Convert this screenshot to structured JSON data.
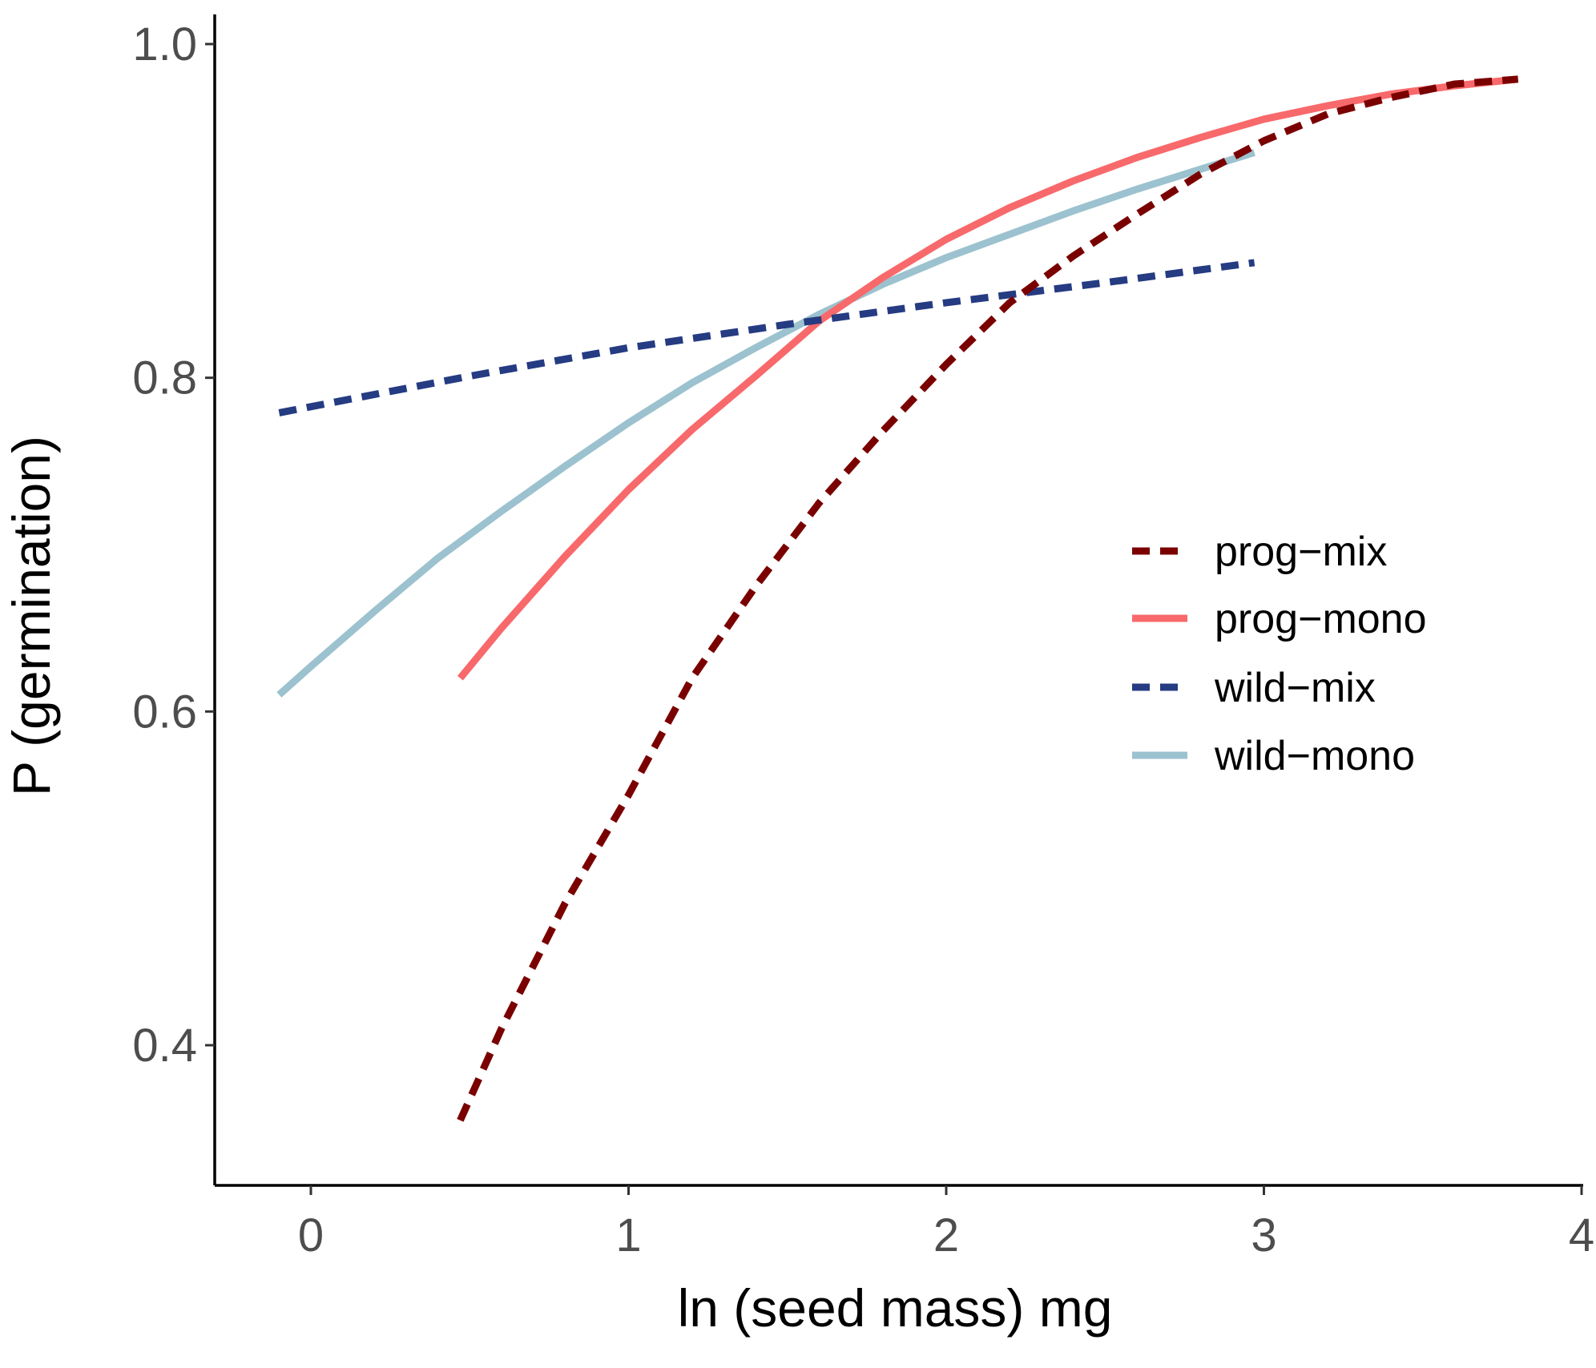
{
  "chart_data": {
    "type": "line",
    "title": "",
    "xlabel": "ln (seed mass) mg",
    "ylabel": "P (germination)",
    "xlim": [
      -0.3,
      4.0
    ],
    "ylim": [
      0.32,
      1.02
    ],
    "xticks": [
      0,
      1,
      2,
      3,
      4
    ],
    "yticks": [
      0.4,
      0.6,
      0.8,
      1.0
    ],
    "ytick_labels": [
      "0.4",
      "0.6",
      "0.8",
      "1.0"
    ],
    "grid": false,
    "legend_position": "right",
    "series": [
      {
        "name": "prog−mix",
        "color": "#7a0000",
        "dash": "dashed",
        "points": [
          [
            0.47,
            0.355
          ],
          [
            0.6,
            0.41
          ],
          [
            0.8,
            0.485
          ],
          [
            1.0,
            0.55
          ],
          [
            1.2,
            0.62
          ],
          [
            1.4,
            0.675
          ],
          [
            1.6,
            0.725
          ],
          [
            1.8,
            0.768
          ],
          [
            2.0,
            0.808
          ],
          [
            2.2,
            0.845
          ],
          [
            2.4,
            0.873
          ],
          [
            2.6,
            0.898
          ],
          [
            2.8,
            0.922
          ],
          [
            3.0,
            0.942
          ],
          [
            3.2,
            0.958
          ],
          [
            3.4,
            0.968
          ],
          [
            3.6,
            0.976
          ],
          [
            3.8,
            0.979
          ]
        ]
      },
      {
        "name": "prog−mono",
        "color": "#f8696b",
        "dash": "solid",
        "points": [
          [
            0.47,
            0.62
          ],
          [
            0.6,
            0.65
          ],
          [
            0.8,
            0.693
          ],
          [
            1.0,
            0.733
          ],
          [
            1.2,
            0.769
          ],
          [
            1.4,
            0.801
          ],
          [
            1.6,
            0.834
          ],
          [
            1.8,
            0.86
          ],
          [
            2.0,
            0.883
          ],
          [
            2.2,
            0.902
          ],
          [
            2.4,
            0.918
          ],
          [
            2.6,
            0.932
          ],
          [
            2.8,
            0.944
          ],
          [
            3.0,
            0.955
          ],
          [
            3.2,
            0.963
          ],
          [
            3.4,
            0.97
          ],
          [
            3.6,
            0.975
          ],
          [
            3.8,
            0.979
          ]
        ]
      },
      {
        "name": "wild−mix",
        "color": "#253b82",
        "dash": "dashed",
        "points": [
          [
            -0.1,
            0.779
          ],
          [
            0.5,
            0.801
          ],
          [
            1.0,
            0.818
          ],
          [
            1.5,
            0.832
          ],
          [
            2.0,
            0.845
          ],
          [
            2.5,
            0.857
          ],
          [
            2.97,
            0.869
          ]
        ]
      },
      {
        "name": "wild−mono",
        "color": "#9cc2cf",
        "dash": "solid",
        "points": [
          [
            -0.1,
            0.61
          ],
          [
            0.0,
            0.627
          ],
          [
            0.2,
            0.66
          ],
          [
            0.4,
            0.692
          ],
          [
            0.6,
            0.72
          ],
          [
            0.8,
            0.747
          ],
          [
            1.0,
            0.773
          ],
          [
            1.2,
            0.797
          ],
          [
            1.4,
            0.818
          ],
          [
            1.6,
            0.838
          ],
          [
            1.8,
            0.856
          ],
          [
            2.0,
            0.872
          ],
          [
            2.2,
            0.886
          ],
          [
            2.4,
            0.9
          ],
          [
            2.6,
            0.913
          ],
          [
            2.8,
            0.925
          ],
          [
            2.97,
            0.935
          ]
        ]
      }
    ]
  }
}
